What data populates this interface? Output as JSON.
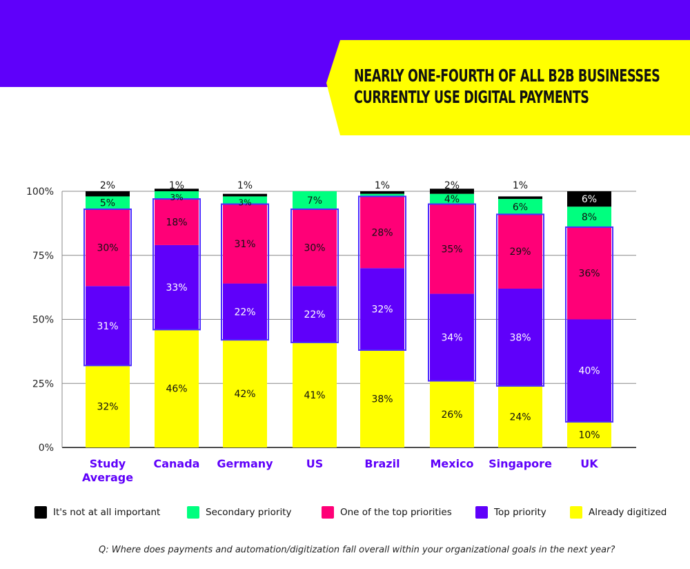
{
  "header": {
    "headline_line1": "NEARLY ONE-FOURTH OF ALL B2B BUSINESSES",
    "headline_line2": "CURRENTLY USE DIGITAL PAYMENTS"
  },
  "colors": {
    "banner_purple": "#5f00fa",
    "banner_yellow": "#ffff00"
  },
  "legend": [
    {
      "label": "It's not at all important",
      "color": "#000000"
    },
    {
      "label": "Secondary priority",
      "color": "#00ff7f"
    },
    {
      "label": "One of the top priorities",
      "color": "#ff0077"
    },
    {
      "label": "Top priority",
      "color": "#5f00fa"
    },
    {
      "label": "Already digitized",
      "color": "#ffff00"
    }
  ],
  "question": "Q: Where does payments and automation/digitization fall overall within your organizational goals in the next year?",
  "chart_data": {
    "type": "bar",
    "stacked": true,
    "title": "NEARLY ONE-FOURTH OF ALL B2B BUSINESSES CURRENTLY USE DIGITAL PAYMENTS",
    "xlabel": "",
    "ylabel": "",
    "ylim": [
      0,
      100
    ],
    "yticks": [
      "0%",
      "25%",
      "50%",
      "75%",
      "100%"
    ],
    "grid": true,
    "legend_position": "bottom",
    "categories": [
      "Study Average",
      "Canada",
      "Germany",
      "US",
      "Brazil",
      "Mexico",
      "Singapore",
      "UK"
    ],
    "category_lines": [
      [
        "Study",
        "Average"
      ],
      [
        "Canada"
      ],
      [
        "Germany"
      ],
      [
        "US"
      ],
      [
        "Brazil"
      ],
      [
        "Mexico"
      ],
      [
        "Singapore"
      ],
      [
        "UK"
      ]
    ],
    "series": [
      {
        "name": "Already digitized",
        "color": "#ffff00",
        "label_color": "#111111",
        "values": [
          32,
          46,
          42,
          41,
          38,
          26,
          24,
          10
        ]
      },
      {
        "name": "Top priority",
        "color": "#5f00fa",
        "label_color": "#ffffff",
        "values": [
          31,
          33,
          22,
          22,
          32,
          34,
          38,
          40
        ]
      },
      {
        "name": "One of the top priorities",
        "color": "#ff0077",
        "label_color": "#111111",
        "values": [
          30,
          18,
          31,
          30,
          28,
          35,
          29,
          36
        ]
      },
      {
        "name": "Secondary priority",
        "color": "#00ff7f",
        "label_color": "#111111",
        "values": [
          5,
          3,
          3,
          7,
          1,
          4,
          6,
          8
        ]
      },
      {
        "name": "It's not at all important",
        "color": "#000000",
        "label_color": "#ffffff",
        "values": [
          2,
          1,
          1,
          0,
          1,
          2,
          1,
          6
        ]
      }
    ],
    "data_labels": [
      [
        "32%",
        "31%",
        "30%",
        "5%",
        "2%"
      ],
      [
        "46%",
        "33%",
        "18%",
        "3%",
        "1%"
      ],
      [
        "42%",
        "22%",
        "31%",
        "3%",
        "1%"
      ],
      [
        "41%",
        "22%",
        "30%",
        "7%",
        ""
      ],
      [
        "38%",
        "32%",
        "28%",
        "",
        "1%"
      ],
      [
        "26%",
        "34%",
        "35%",
        "4%",
        "2%"
      ],
      [
        "24%",
        "38%",
        "29%",
        "6%",
        "1%"
      ],
      [
        "10%",
        "40%",
        "36%",
        "8%",
        "6%"
      ]
    ]
  }
}
